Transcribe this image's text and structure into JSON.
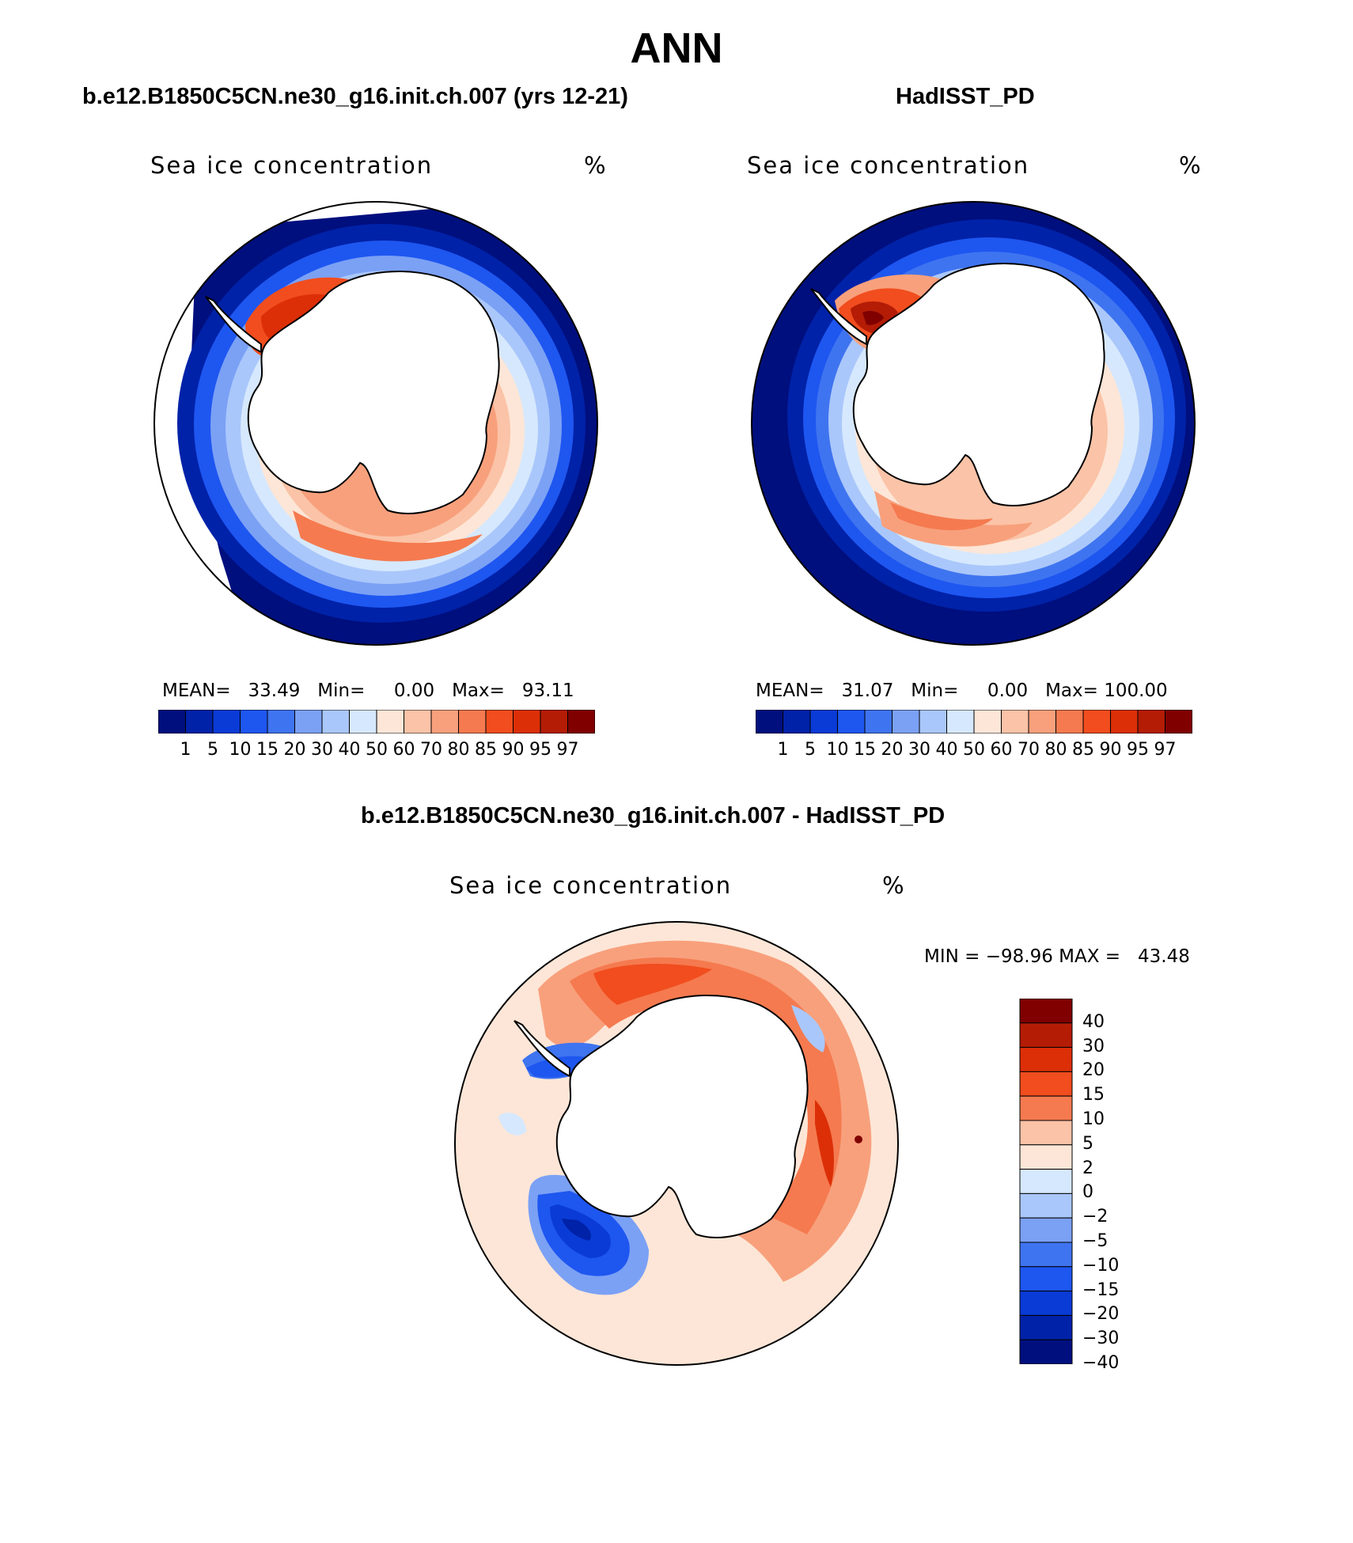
{
  "title": "ANN",
  "panels": [
    {
      "subtitle": "b.e12.B1850C5CN.ne30_g16.init.ch.007 (yrs 12-21)",
      "variable": "Sea ice concentration",
      "units": "%",
      "stats": "MEAN=   33.49   Min=     0.00   Max=   93.11",
      "colorbar_levels": [
        "1",
        "5",
        "10",
        "15",
        "20",
        "30",
        "40",
        "50",
        "60",
        "70",
        "80",
        "85",
        "90",
        "95",
        "97"
      ]
    },
    {
      "subtitle": "HadISST_PD",
      "variable": "Sea ice concentration",
      "units": "%",
      "stats": "MEAN=   31.07   Min=     0.00   Max= 100.00",
      "colorbar_levels": [
        "1",
        "5",
        "10",
        "15",
        "20",
        "30",
        "40",
        "50",
        "60",
        "70",
        "80",
        "85",
        "90",
        "95",
        "97"
      ]
    }
  ],
  "difference": {
    "subtitle": "b.e12.B1850C5CN.ne30_g16.init.ch.007 - HadISST_PD",
    "variable": "Sea ice concentration",
    "units": "%",
    "stats": "MIN = −98.96 MAX =   43.48",
    "colorbar_levels": [
      "40",
      "30",
      "20",
      "15",
      "10",
      "5",
      "2",
      "0",
      "−2",
      "−5",
      "−10",
      "−15",
      "−20",
      "−30",
      "−40"
    ]
  },
  "colors": {
    "seq_scale": [
      "#000f7e",
      "#0022a8",
      "#0a3bd6",
      "#1e56f0",
      "#3f74f0",
      "#7ba1f5",
      "#aac7fb",
      "#d6e8fd",
      "#fde6d7",
      "#fbc3a7",
      "#f8a07c",
      "#f57a4f",
      "#f14d1e",
      "#dc2f08",
      "#b41c05",
      "#800000"
    ],
    "div_scale": [
      "#800000",
      "#b41c05",
      "#dc2f08",
      "#f14d1e",
      "#f57a4f",
      "#fbc3a7",
      "#fde6d7",
      "#d6e8fd",
      "#aac7fb",
      "#7ba1f5",
      "#3f74f0",
      "#1e56f0",
      "#0a3bd6",
      "#0022a8",
      "#000f7e"
    ]
  }
}
